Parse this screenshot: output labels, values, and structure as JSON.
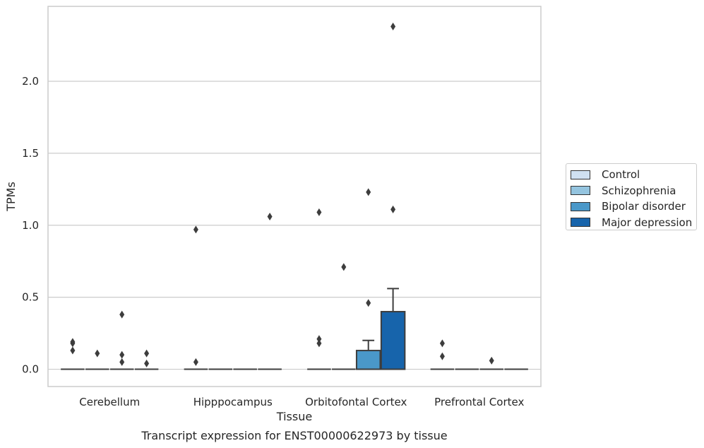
{
  "chart_data": {
    "type": "box",
    "title": "Transcript expression for ENST00000622973 by tissue",
    "xlabel": "Tissue",
    "ylabel": "TPMs",
    "ylim": [
      -0.12,
      2.52
    ],
    "yticks": [
      0.0,
      0.5,
      1.0,
      1.5,
      2.0
    ],
    "ytick_labels": [
      "0.0",
      "0.5",
      "1.0",
      "1.5",
      "2.0"
    ],
    "grid": true,
    "legend_position": "right",
    "categories": [
      "Cerebellum",
      "Hipppocampus",
      "Orbitofontal Cortex",
      "Prefrontal Cortex"
    ],
    "series": [
      {
        "name": "Control",
        "color": "#d0e1f2"
      },
      {
        "name": "Schizophrenia",
        "color": "#94c4df"
      },
      {
        "name": "Bipolar disorder",
        "color": "#4a98c9"
      },
      {
        "name": "Major depression",
        "color": "#1764ab"
      }
    ],
    "boxes": [
      {
        "category": "Cerebellum",
        "series": "Control",
        "q1": 0,
        "median": 0,
        "q3": 0,
        "whisker_high": 0,
        "outliers": [
          0.19,
          0.18,
          0.13
        ]
      },
      {
        "category": "Cerebellum",
        "series": "Schizophrenia",
        "q1": 0,
        "median": 0,
        "q3": 0,
        "whisker_high": 0,
        "outliers": [
          0.11
        ]
      },
      {
        "category": "Cerebellum",
        "series": "Bipolar disorder",
        "q1": 0,
        "median": 0,
        "q3": 0,
        "whisker_high": 0,
        "outliers": [
          0.38,
          0.1,
          0.05
        ]
      },
      {
        "category": "Cerebellum",
        "series": "Major depression",
        "q1": 0,
        "median": 0,
        "q3": 0,
        "whisker_high": 0,
        "outliers": [
          0.11,
          0.04
        ]
      },
      {
        "category": "Hipppocampus",
        "series": "Control",
        "q1": 0,
        "median": 0,
        "q3": 0,
        "whisker_high": 0,
        "outliers": [
          0.97,
          0.05
        ]
      },
      {
        "category": "Hipppocampus",
        "series": "Schizophrenia",
        "q1": 0,
        "median": 0,
        "q3": 0,
        "whisker_high": 0,
        "outliers": []
      },
      {
        "category": "Hipppocampus",
        "series": "Bipolar disorder",
        "q1": 0,
        "median": 0,
        "q3": 0,
        "whisker_high": 0,
        "outliers": []
      },
      {
        "category": "Hipppocampus",
        "series": "Major depression",
        "q1": 0,
        "median": 0,
        "q3": 0,
        "whisker_high": 0,
        "outliers": [
          1.06
        ]
      },
      {
        "category": "Orbitofontal Cortex",
        "series": "Control",
        "q1": 0,
        "median": 0,
        "q3": 0,
        "whisker_high": 0,
        "outliers": [
          1.09,
          0.21,
          0.18
        ]
      },
      {
        "category": "Orbitofontal Cortex",
        "series": "Schizophrenia",
        "q1": 0,
        "median": 0,
        "q3": 0,
        "whisker_high": 0,
        "outliers": [
          0.71
        ]
      },
      {
        "category": "Orbitofontal Cortex",
        "series": "Bipolar disorder",
        "q1": 0,
        "median": 0,
        "q3": 0.13,
        "whisker_high": 0.2,
        "outliers": [
          1.23,
          0.46
        ]
      },
      {
        "category": "Orbitofontal Cortex",
        "series": "Major depression",
        "q1": 0,
        "median": 0,
        "q3": 0.4,
        "whisker_high": 0.56,
        "outliers": [
          2.38,
          1.11
        ]
      },
      {
        "category": "Prefrontal Cortex",
        "series": "Control",
        "q1": 0,
        "median": 0,
        "q3": 0,
        "whisker_high": 0,
        "outliers": [
          0.18,
          0.09
        ]
      },
      {
        "category": "Prefrontal Cortex",
        "series": "Schizophrenia",
        "q1": 0,
        "median": 0,
        "q3": 0,
        "whisker_high": 0,
        "outliers": []
      },
      {
        "category": "Prefrontal Cortex",
        "series": "Bipolar disorder",
        "q1": 0,
        "median": 0,
        "q3": 0,
        "whisker_high": 0,
        "outliers": [
          0.06
        ]
      },
      {
        "category": "Prefrontal Cortex",
        "series": "Major depression",
        "q1": 0,
        "median": 0,
        "q3": 0,
        "whisker_high": 0,
        "outliers": []
      }
    ]
  }
}
